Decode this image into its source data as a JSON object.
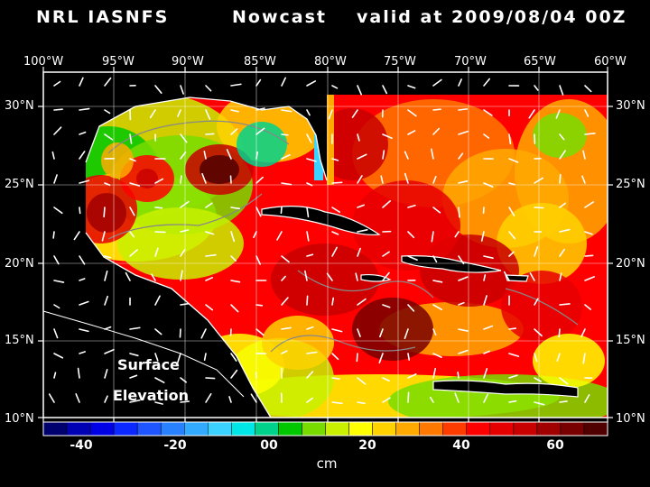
{
  "header": {
    "model": "NRL IASNFS",
    "product": "Nowcast",
    "valid": "valid at 2009/08/04 00Z"
  },
  "map": {
    "lon_labels": [
      "100°W",
      "95°W",
      "90°W",
      "85°W",
      "80°W",
      "75°W",
      "70°W",
      "65°W",
      "60°W"
    ],
    "lat_labels": [
      "30°N",
      "25°N",
      "20°N",
      "15°N",
      "10°N"
    ],
    "variable_line1": "Surface",
    "variable_line2": "Elevation",
    "land_color": "#000000",
    "coast_color": "#ffffff"
  },
  "colorbar": {
    "unit": "cm",
    "ticks": [
      "-40",
      "-20",
      "00",
      "20",
      "40",
      "60"
    ],
    "range": [
      -50,
      70
    ],
    "step": 5,
    "colors": [
      "#00006e",
      "#0000b4",
      "#0000e6",
      "#0a28ff",
      "#1e55ff",
      "#2882ff",
      "#32aaff",
      "#3cd2ff",
      "#00e6e6",
      "#00d28c",
      "#00c800",
      "#78dc00",
      "#c8f000",
      "#ffff00",
      "#ffd200",
      "#ffaa00",
      "#ff7800",
      "#ff3c00",
      "#ff0000",
      "#e60000",
      "#c80000",
      "#a00000",
      "#780000",
      "#500000"
    ]
  }
}
